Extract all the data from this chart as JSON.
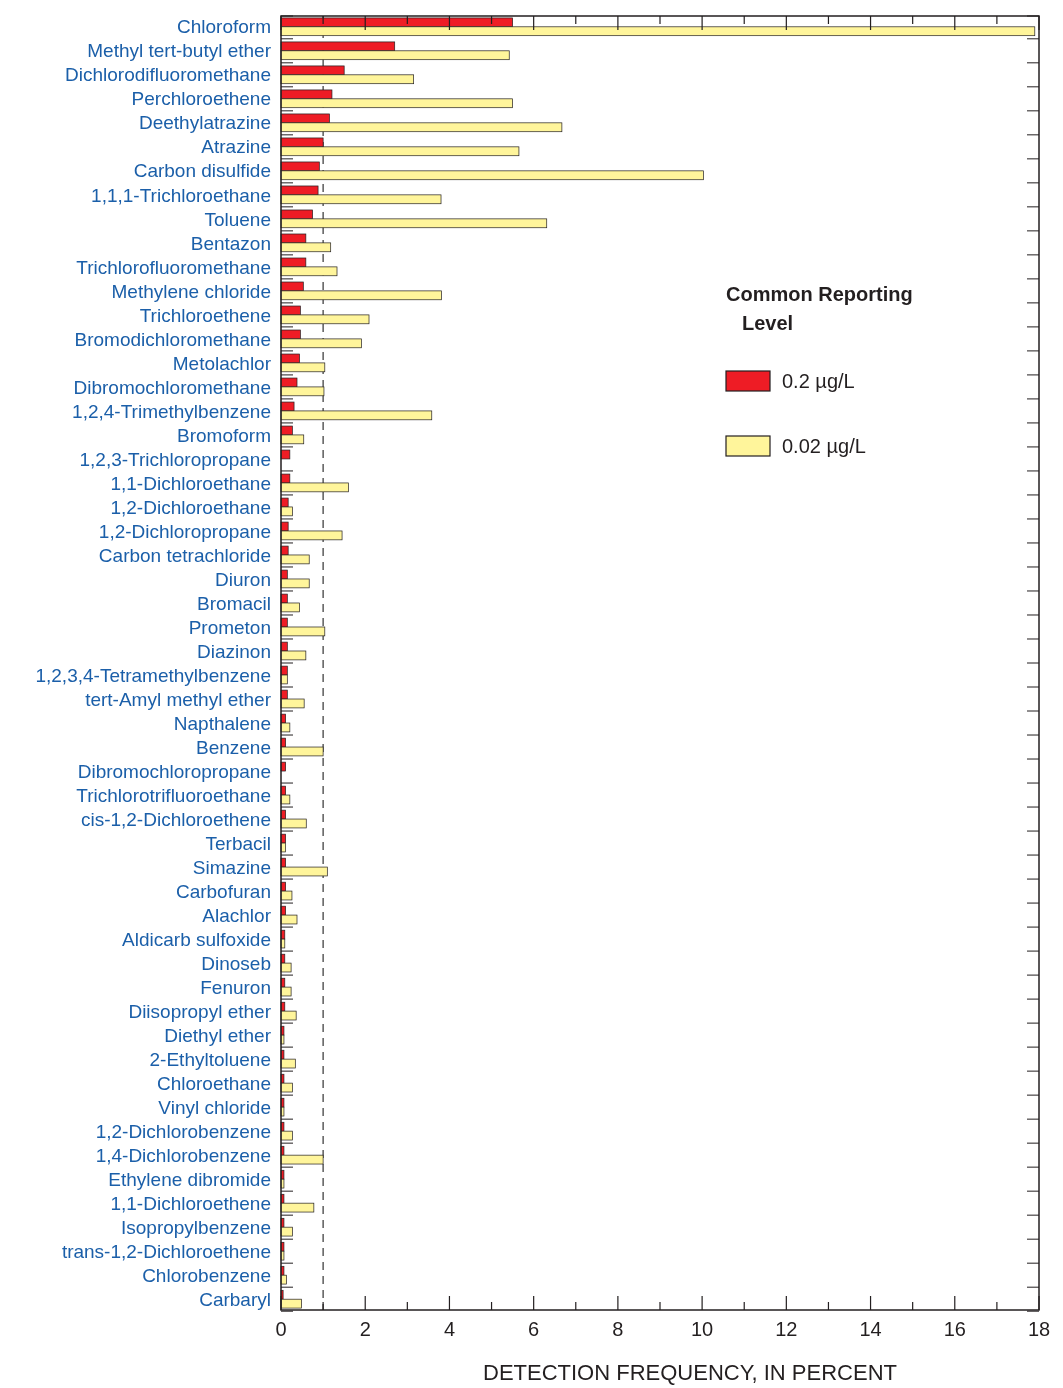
{
  "chart_data": {
    "type": "bar",
    "orientation": "horizontal",
    "xlabel": "DETECTION FREQUENCY, IN PERCENT",
    "legend_title": "Common Reporting Level",
    "legend": "right",
    "grid": false,
    "categories": [
      "Chloroform",
      "Methyl tert-butyl ether",
      "Dichlorodifluoromethane",
      "Perchloroethene",
      "Deethylatrazine",
      "Atrazine",
      "Carbon disulfide",
      "1,1,1-Trichloroethane",
      "Toluene",
      "Bentazon",
      "Trichlorofluoromethane",
      "Methylene chloride",
      "Trichloroethene",
      "Bromodichloromethane",
      "Metolachlor",
      "Dibromochloromethane",
      "1,2,4-Trimethylbenzene",
      "Bromoform",
      "1,2,3-Trichloropropane",
      "1,1-Dichloroethane",
      "1,2-Dichloroethane",
      "1,2-Dichloropropane",
      "Carbon tetrachloride",
      "Diuron",
      "Bromacil",
      "Prometon",
      "Diazinon",
      "1,2,3,4-Tetramethylbenzene",
      "tert-Amyl methyl ether",
      "Napthalene",
      "Benzene",
      "Dibromochloropropane",
      "Trichlorotrifluoroethane",
      "cis-1,2-Dichloroethene",
      "Terbacil",
      "Simazine",
      "Carbofuran",
      "Alachlor",
      "Aldicarb sulfoxide",
      "Dinoseb",
      "Fenuron",
      "Diisopropyl ether",
      "Diethyl ether",
      "2-Ethyltoluene",
      "Chloroethane",
      "Vinyl chloride",
      "1,2-Dichlorobenzene",
      "1,4-Dichlorobenzene",
      "Ethylene dibromide",
      "1,1-Dichloroethene",
      "Isopropylbenzene",
      "trans-1,2-Dichloroethene",
      "Chlorobenzene",
      "Carbaryl"
    ],
    "series": [
      {
        "name": "0.2 µg/L",
        "color": "#ee1c25",
        "values": [
          5.5,
          2.7,
          1.5,
          1.21,
          1.15,
          1.0,
          0.91,
          0.88,
          0.75,
          0.59,
          0.59,
          0.53,
          0.46,
          0.46,
          0.44,
          0.38,
          0.31,
          0.27,
          0.21,
          0.21,
          0.17,
          0.17,
          0.17,
          0.15,
          0.15,
          0.15,
          0.15,
          0.15,
          0.15,
          0.11,
          0.11,
          0.11,
          0.11,
          0.11,
          0.11,
          0.11,
          0.11,
          0.11,
          0.09,
          0.09,
          0.09,
          0.09,
          0.07,
          0.07,
          0.07,
          0.07,
          0.07,
          0.07,
          0.07,
          0.07,
          0.07,
          0.07,
          0.07,
          0.05
        ]
      },
      {
        "name": "0.02 µg/L",
        "color": "#fff59b",
        "values": [
          17.9,
          5.42,
          3.15,
          5.5,
          6.67,
          5.65,
          10.03,
          3.8,
          6.31,
          1.18,
          1.33,
          3.81,
          2.09,
          1.91,
          1.04,
          1.02,
          3.58,
          0.54,
          0,
          1.6,
          0.27,
          1.45,
          0.67,
          0.67,
          0.44,
          1.04,
          0.59,
          0.15,
          0.55,
          0.21,
          1.0,
          0,
          0.21,
          0.6,
          0.11,
          1.1,
          0.26,
          0.38,
          0.09,
          0.24,
          0.24,
          0.36,
          0.07,
          0.34,
          0.27,
          0.07,
          0.27,
          1.0,
          0.07,
          0.78,
          0.27,
          0.07,
          0.13,
          0.49
        ]
      }
    ],
    "xlim": [
      0,
      18
    ],
    "xticks": [
      0,
      {
        "value": 1,
        "label": null
      },
      2,
      {
        "value": 3,
        "label": null
      },
      4,
      {
        "value": 5,
        "label": null
      },
      6,
      {
        "value": 7,
        "label": null
      },
      8,
      {
        "value": 9,
        "label": null
      },
      10,
      {
        "value": 11,
        "label": null
      },
      12,
      {
        "value": 13,
        "label": null
      },
      14,
      {
        "value": 15,
        "label": null
      },
      16,
      {
        "value": 17,
        "label": null
      },
      18
    ],
    "ref_lines": [
      {
        "axis": "x",
        "value": 1,
        "label": null,
        "line_style": "dashed",
        "color": "#333333"
      }
    ]
  }
}
